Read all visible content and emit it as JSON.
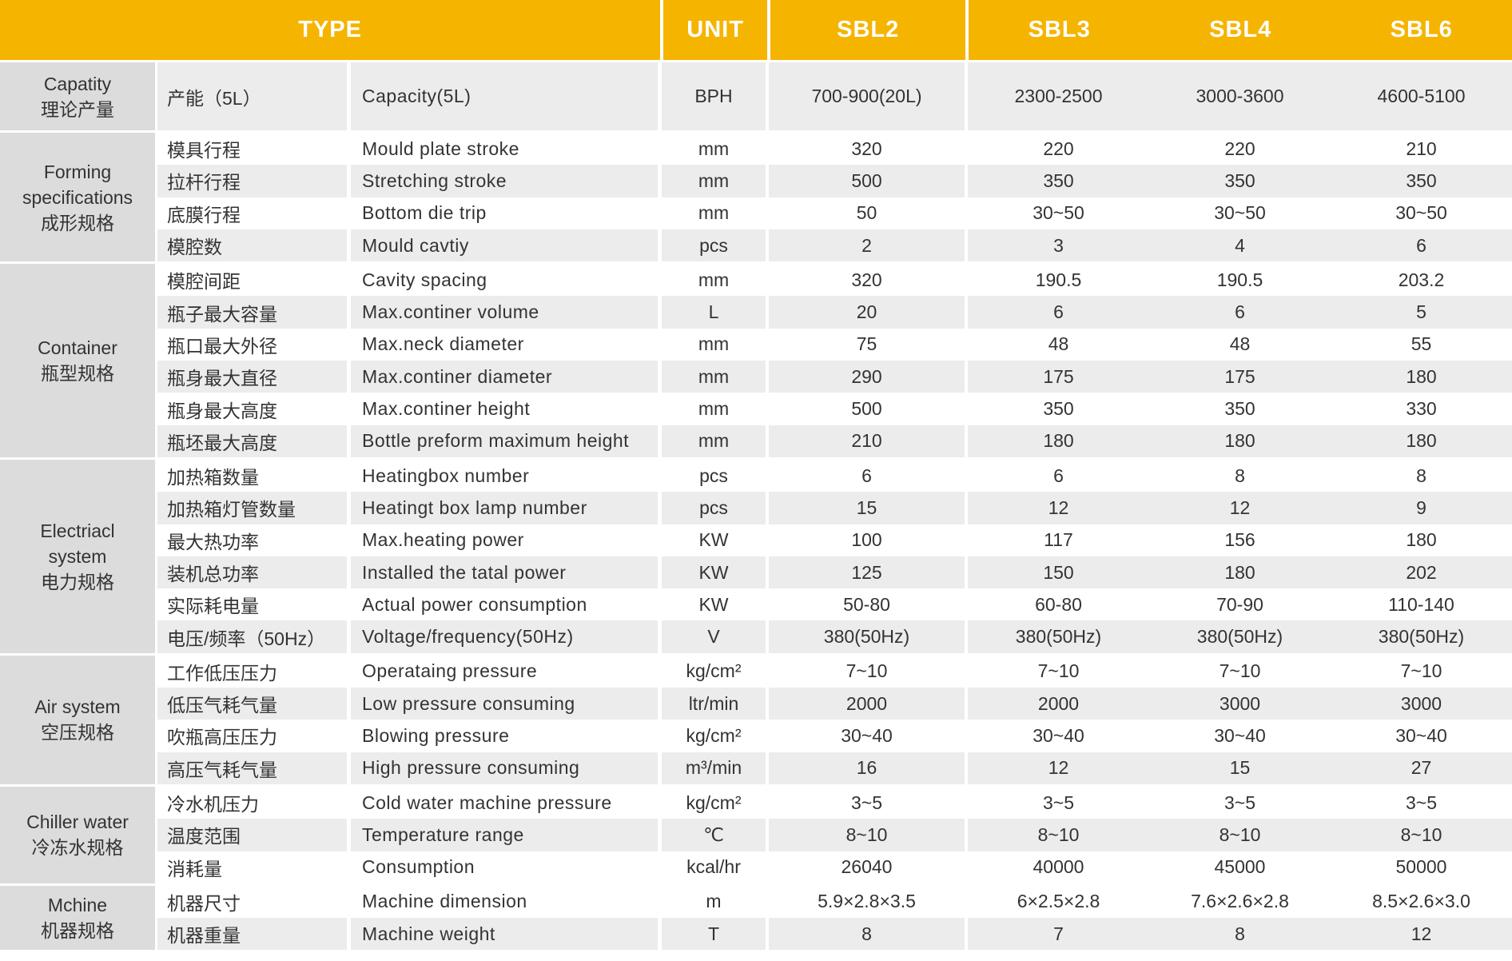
{
  "header": {
    "type": "TYPE",
    "unit": "UNIT",
    "models": [
      "SBL2",
      "SBL3",
      "SBL4",
      "SBL6"
    ]
  },
  "colors": {
    "header": "#f5b400",
    "group_bg": "#dcdcdc",
    "row_alt": "#ececec"
  },
  "groups": [
    {
      "name": "Capatity\n理论产量",
      "rows": [
        {
          "cn": "产能（5L）",
          "en": "Capacity(5L)",
          "unit": "BPH",
          "values": [
            "700-900(20L)",
            "2300-2500",
            "3000-3600",
            "4600-5100"
          ]
        }
      ]
    },
    {
      "name": "Forming\nspecifications\n成形规格",
      "rows": [
        {
          "cn": "模具行程",
          "en": "Mould plate stroke",
          "unit": "mm",
          "values": [
            "320",
            "220",
            "220",
            "210"
          ]
        },
        {
          "cn": "拉杆行程",
          "en": "Stretching stroke",
          "unit": "mm",
          "values": [
            "500",
            "350",
            "350",
            "350"
          ]
        },
        {
          "cn": "底膜行程",
          "en": "Bottom die trip",
          "unit": "mm",
          "values": [
            "50",
            "30~50",
            "30~50",
            "30~50"
          ]
        },
        {
          "cn": "模腔数",
          "en": "Mould cavtiy",
          "unit": "pcs",
          "values": [
            "2",
            "3",
            "4",
            "6"
          ]
        }
      ]
    },
    {
      "name": "Container\n瓶型规格",
      "rows": [
        {
          "cn": "模腔间距",
          "en": "Cavity spacing",
          "unit": "mm",
          "values": [
            "320",
            "190.5",
            "190.5",
            "203.2"
          ]
        },
        {
          "cn": "瓶子最大容量",
          "en": "Max.continer volume",
          "unit": "L",
          "values": [
            "20",
            "6",
            "6",
            "5"
          ]
        },
        {
          "cn": "瓶口最大外径",
          "en": "Max.neck diameter",
          "unit": "mm",
          "values": [
            "75",
            "48",
            "48",
            "55"
          ]
        },
        {
          "cn": "瓶身最大直径",
          "en": "Max.continer diameter",
          "unit": "mm",
          "values": [
            "290",
            "175",
            "175",
            "180"
          ]
        },
        {
          "cn": "瓶身最大高度",
          "en": "Max.continer height",
          "unit": "mm",
          "values": [
            "500",
            "350",
            "350",
            "330"
          ]
        },
        {
          "cn": "瓶坯最大高度",
          "en": "Bottle preform maximum height",
          "unit": "mm",
          "values": [
            "210",
            "180",
            "180",
            "180"
          ]
        }
      ]
    },
    {
      "name": "Electriacl\nsystem\n电力规格",
      "rows": [
        {
          "cn": "加热箱数量",
          "en": "Heatingbox number",
          "unit": "pcs",
          "values": [
            "6",
            "6",
            "8",
            "8"
          ]
        },
        {
          "cn": "加热箱灯管数量",
          "en": "Heatingt box lamp number",
          "unit": "pcs",
          "values": [
            "15",
            "12",
            "12",
            "9"
          ]
        },
        {
          "cn": "最大热功率",
          "en": "Max.heating power",
          "unit": "KW",
          "values": [
            "100",
            "117",
            "156",
            "180"
          ]
        },
        {
          "cn": "装机总功率",
          "en": "Installed the tatal power",
          "unit": "KW",
          "values": [
            "125",
            "150",
            "180",
            "202"
          ]
        },
        {
          "cn": "实际耗电量",
          "en": "Actual power consumption",
          "unit": "KW",
          "values": [
            "50-80",
            "60-80",
            "70-90",
            "110-140"
          ]
        },
        {
          "cn": "电压/频率（50Hz）",
          "en": "Voltage/frequency(50Hz)",
          "unit": "V",
          "values": [
            "380(50Hz)",
            "380(50Hz)",
            "380(50Hz)",
            "380(50Hz)"
          ]
        }
      ]
    },
    {
      "name": "Air system\n空压规格",
      "rows": [
        {
          "cn": "工作低压压力",
          "en": "Operataing pressure",
          "unit": "kg/cm²",
          "values": [
            "7~10",
            "7~10",
            "7~10",
            "7~10"
          ]
        },
        {
          "cn": "低压气耗气量",
          "en": "Low pressure consuming",
          "unit": "ltr/min",
          "values": [
            "2000",
            "2000",
            "3000",
            "3000"
          ]
        },
        {
          "cn": "吹瓶高压压力",
          "en": "Blowing pressure",
          "unit": "kg/cm²",
          "values": [
            "30~40",
            "30~40",
            "30~40",
            "30~40"
          ]
        },
        {
          "cn": "高压气耗气量",
          "en": "High pressure consuming",
          "unit": "m³/min",
          "values": [
            "16",
            "12",
            "15",
            "27"
          ]
        }
      ]
    },
    {
      "name": "Chiller water\n冷冻水规格",
      "rows": [
        {
          "cn": "冷水机压力",
          "en": "Cold water machine pressure",
          "unit": "kg/cm²",
          "values": [
            "3~5",
            "3~5",
            "3~5",
            "3~5"
          ]
        },
        {
          "cn": "温度范围",
          "en": "Temperature range",
          "unit": "℃",
          "values": [
            "8~10",
            "8~10",
            "8~10",
            "8~10"
          ]
        },
        {
          "cn": "消耗量",
          "en": "Consumption",
          "unit": "kcal/hr",
          "values": [
            "26040",
            "40000",
            "45000",
            "50000"
          ]
        }
      ]
    },
    {
      "name": "Mchine\n机器规格",
      "rows": [
        {
          "cn": "机器尺寸",
          "en": "Machine dimension",
          "unit": "m",
          "values": [
            "5.9×2.8×3.5",
            "6×2.5×2.8",
            "7.6×2.6×2.8",
            "8.5×2.6×3.0"
          ]
        },
        {
          "cn": "机器重量",
          "en": "Machine weight",
          "unit": "T",
          "values": [
            "8",
            "7",
            "8",
            "12"
          ]
        }
      ]
    }
  ]
}
